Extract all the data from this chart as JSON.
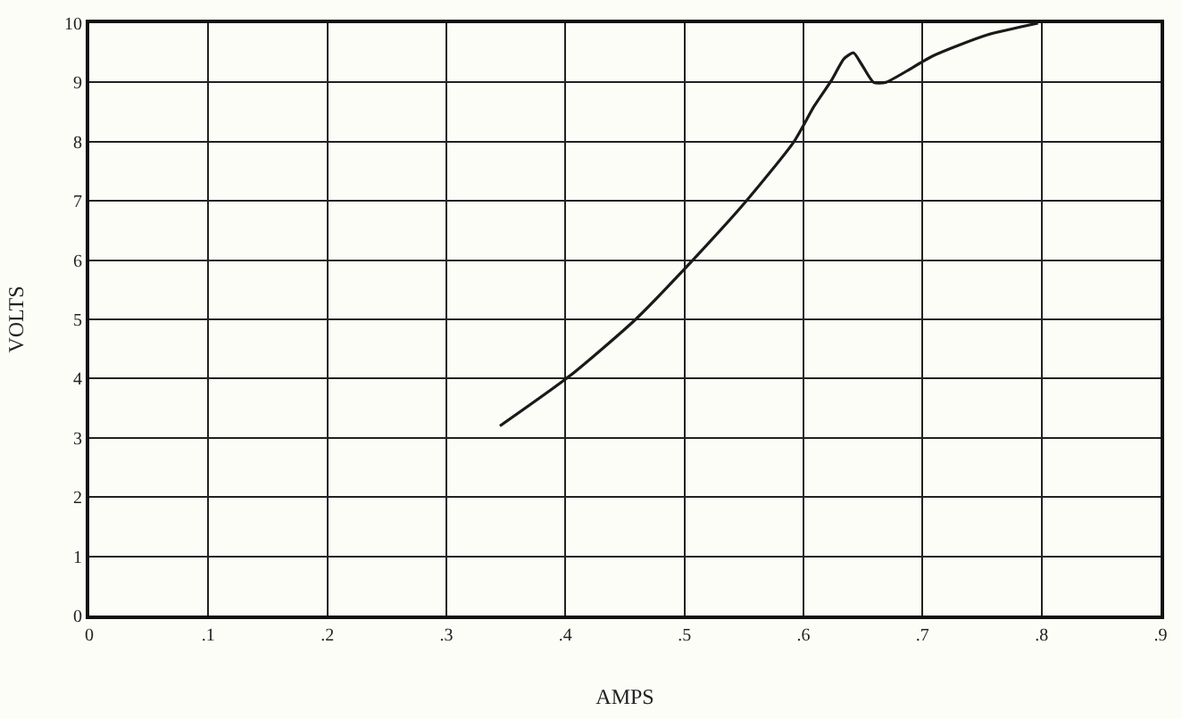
{
  "chart_data": {
    "type": "line",
    "xlabel": "AMPS",
    "ylabel": "VOLTS",
    "x": [
      0.345,
      0.404,
      0.459,
      0.507,
      0.552,
      0.592,
      0.609,
      0.624,
      0.634,
      0.642,
      0.649,
      0.659,
      0.669,
      0.709,
      0.754,
      0.797
    ],
    "series": [
      {
        "color": "#1a1a1a",
        "values": [
          3.2,
          4.05,
          5.0,
          6.0,
          7.0,
          8.0,
          8.6,
          9.05,
          9.4,
          9.5,
          9.3,
          9.0,
          9.0,
          9.45,
          9.8,
          10.0
        ]
      }
    ],
    "xlim": [
      0,
      0.9
    ],
    "ylim": [
      0,
      10
    ],
    "xticks": [
      0,
      {
        "value": 0.1,
        "label": ".1"
      },
      {
        "value": 0.2,
        "label": ".2"
      },
      {
        "value": 0.3,
        "label": ".3"
      },
      {
        "value": 0.4,
        "label": ".4"
      },
      {
        "value": 0.5,
        "label": ".5"
      },
      {
        "value": 0.6,
        "label": ".6"
      },
      {
        "value": 0.7,
        "label": ".7"
      },
      {
        "value": 0.8,
        "label": ".8"
      },
      {
        "value": 0.9,
        "label": ".9"
      }
    ],
    "yticks": [
      0,
      1,
      2,
      3,
      4,
      5,
      6,
      7,
      8,
      9,
      10
    ],
    "grid": true,
    "marker": "none",
    "line_style": "solid"
  }
}
